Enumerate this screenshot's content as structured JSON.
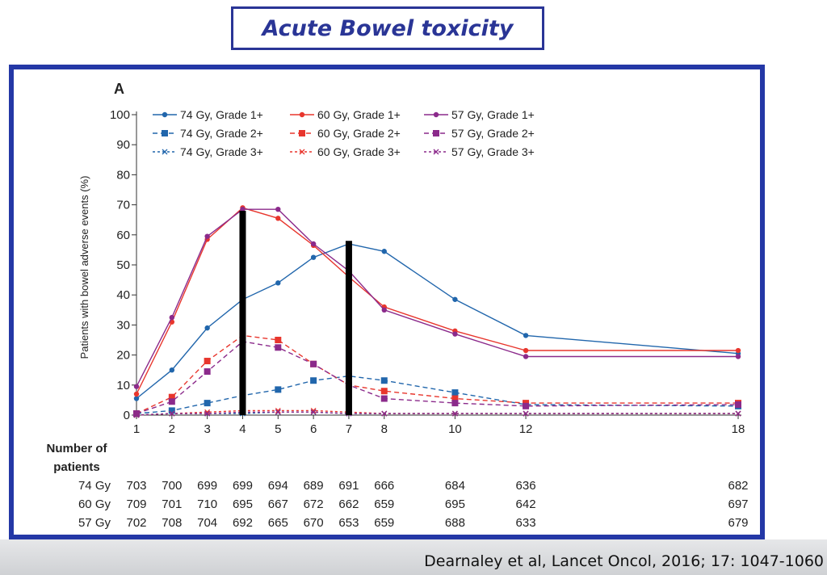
{
  "header": {
    "title": "Acute Bowel toxicity"
  },
  "citation": "Dearnaley et al, Lancet Oncol, 2016; 17: 1047-1060",
  "chart_data": {
    "type": "line",
    "panel_label": "A",
    "ylabel": "Patients with bowel adverse events (%)",
    "xlabel": "",
    "ylim": [
      0,
      100
    ],
    "yticks": [
      0,
      10,
      20,
      30,
      40,
      50,
      60,
      70,
      80,
      90,
      100
    ],
    "x": [
      1,
      2,
      3,
      4,
      5,
      6,
      7,
      8,
      10,
      12,
      18
    ],
    "grid": false,
    "legend_position": "top",
    "colors": {
      "74 Gy": "#2166ac",
      "60 Gy": "#e8362d",
      "57 Gy": "#8b2a8b"
    },
    "series": [
      {
        "name": "74 Gy, Grade 1+",
        "arm": "74 Gy",
        "grade": 1,
        "values": [
          5.5,
          15,
          29,
          38.5,
          44,
          52.5,
          57,
          54.5,
          38.5,
          26.5,
          20.5
        ]
      },
      {
        "name": "60 Gy, Grade 1+",
        "arm": "60 Gy",
        "grade": 1,
        "values": [
          7,
          31,
          58.5,
          69,
          65.5,
          56.5,
          46,
          36,
          28,
          21.5,
          21.5
        ]
      },
      {
        "name": "57 Gy, Grade 1+",
        "arm": "57 Gy",
        "grade": 1,
        "values": [
          9.5,
          32.5,
          59.5,
          68.5,
          68.5,
          57,
          48,
          35,
          27,
          19.5,
          19.5
        ]
      },
      {
        "name": "74 Gy, Grade 2+",
        "arm": "74 Gy",
        "grade": 2,
        "values": [
          0.5,
          1.5,
          4,
          6.5,
          8.5,
          11.5,
          13,
          11.5,
          7.5,
          3.5,
          3
        ]
      },
      {
        "name": "60 Gy, Grade 2+",
        "arm": "60 Gy",
        "grade": 2,
        "values": [
          0.5,
          6,
          18,
          26.5,
          25,
          17,
          10,
          8,
          5.5,
          4,
          4
        ]
      },
      {
        "name": "57 Gy, Grade 2+",
        "arm": "57 Gy",
        "grade": 2,
        "values": [
          0.5,
          4.5,
          14.5,
          24.5,
          22.5,
          17,
          10,
          5.5,
          4,
          3,
          3.5
        ]
      },
      {
        "name": "74 Gy, Grade 3+",
        "arm": "74 Gy",
        "grade": 3,
        "values": [
          0,
          0.5,
          0.5,
          0.5,
          1,
          1,
          0.5,
          0.5,
          0.5,
          0.5,
          0.5
        ]
      },
      {
        "name": "60 Gy, Grade 3+",
        "arm": "60 Gy",
        "grade": 3,
        "values": [
          0,
          0.5,
          1,
          1.5,
          1.5,
          1.5,
          1,
          0.5,
          0.5,
          0.5,
          0.5
        ]
      },
      {
        "name": "57 Gy, Grade 3+",
        "arm": "57 Gy",
        "grade": 3,
        "values": [
          0,
          0.5,
          0.5,
          1,
          1,
          1,
          0.5,
          0.5,
          0.5,
          0.5,
          0.5
        ]
      }
    ],
    "annotation_bars": [
      {
        "x": 4,
        "y_top": 68
      },
      {
        "x": 7,
        "y_top": 58
      }
    ],
    "patients_table": {
      "header_line1": "Number of",
      "header_line2": "patients",
      "rows": [
        {
          "label": "74 Gy",
          "values": [
            703,
            700,
            699,
            699,
            694,
            689,
            691,
            666,
            684,
            636,
            682
          ]
        },
        {
          "label": "60 Gy",
          "values": [
            709,
            701,
            710,
            695,
            667,
            672,
            662,
            659,
            695,
            642,
            697
          ]
        },
        {
          "label": "57 Gy",
          "values": [
            702,
            708,
            704,
            692,
            665,
            670,
            653,
            659,
            688,
            633,
            679
          ]
        }
      ]
    }
  }
}
